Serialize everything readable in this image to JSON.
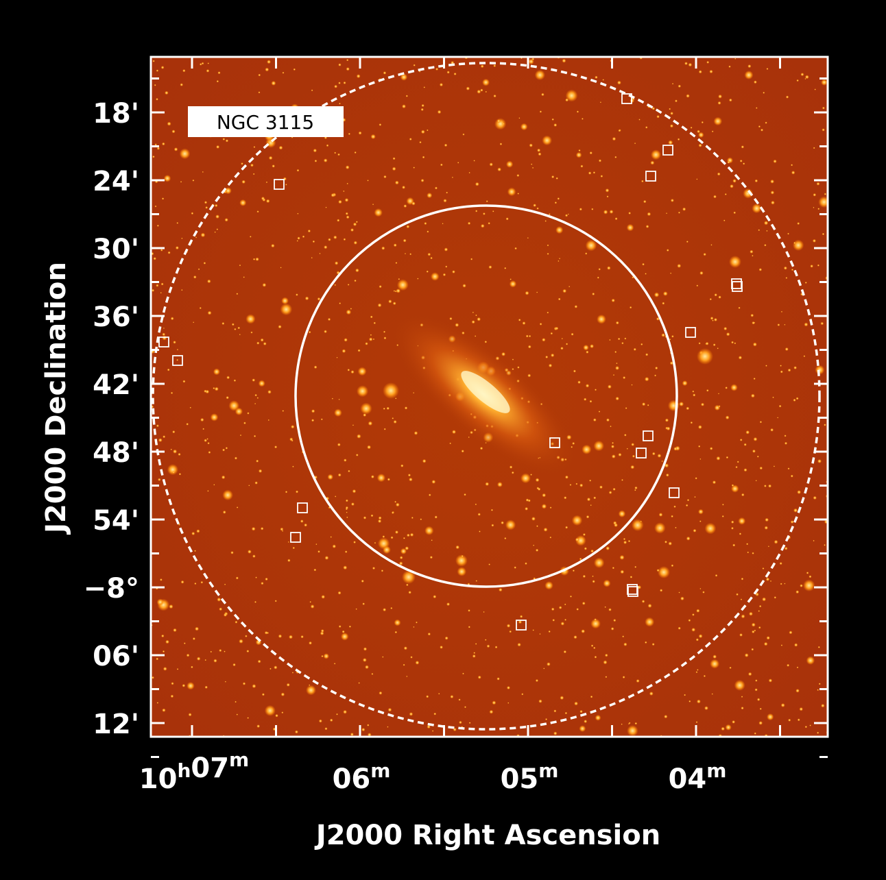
{
  "label": "NGC 3115",
  "y_axis": {
    "title": "J2000 Declination",
    "labels": [
      "18'",
      "24'",
      "30'",
      "36'",
      "42'",
      "48'",
      "54'",
      "−8°",
      "06'",
      "12'"
    ]
  },
  "x_axis": {
    "title": "J2000 Right Ascension",
    "labels": [
      [
        {
          "text": "10",
          "sup": "h"
        },
        {
          "text": "07",
          "sup": "m"
        }
      ],
      [
        {
          "text": "06",
          "sup": "m"
        }
      ],
      [
        {
          "text": "05",
          "sup": "m"
        }
      ],
      [
        {
          "text": "04",
          "sup": "m"
        }
      ]
    ]
  }
}
